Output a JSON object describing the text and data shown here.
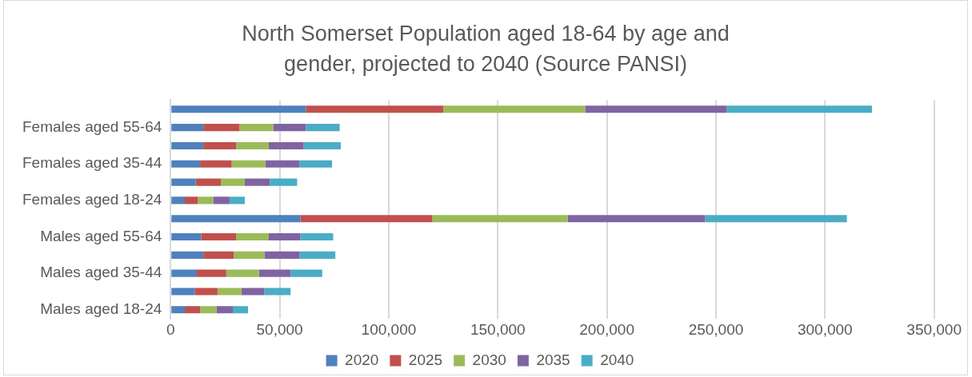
{
  "chart_data": {
    "type": "bar",
    "orientation": "horizontal",
    "stacked": true,
    "title": "North Somerset Population aged 18-64 by age and gender, projected to 2040 (Source PANSI)",
    "categories": [
      null,
      "Females aged 55-64",
      null,
      "Females aged 35-44",
      null,
      "Females aged 18-24",
      null,
      "Males aged 55-64",
      null,
      "Males aged 35-44",
      null,
      "Males aged 18-24"
    ],
    "series": [
      {
        "name": "2020",
        "color": "#4f81bd",
        "values": [
          62000,
          15000,
          15000,
          13500,
          11500,
          6500,
          59500,
          14000,
          15000,
          12000,
          11000,
          6500
        ]
      },
      {
        "name": "2025",
        "color": "#c0504d",
        "values": [
          63000,
          16500,
          15000,
          14500,
          11500,
          6000,
          60500,
          16000,
          14000,
          13500,
          10500,
          7000
        ]
      },
      {
        "name": "2030",
        "color": "#9bbb59",
        "values": [
          65000,
          15500,
          15000,
          15500,
          11000,
          7000,
          62000,
          15000,
          14000,
          15000,
          11000,
          7500
        ]
      },
      {
        "name": "2035",
        "color": "#8064a2",
        "values": [
          65000,
          15000,
          16000,
          15500,
          11500,
          7500,
          63000,
          14500,
          16000,
          14500,
          10500,
          7500
        ]
      },
      {
        "name": "2040",
        "color": "#4bacc6",
        "values": [
          66500,
          15500,
          17000,
          15000,
          12500,
          7000,
          65000,
          15000,
          16500,
          14500,
          12000,
          7000
        ]
      }
    ],
    "xlim": [
      0,
      350000
    ],
    "xticks": [
      0,
      {
        "value": 50000,
        "label": "50,000"
      },
      {
        "value": 100000,
        "label": "100,000"
      },
      {
        "value": 150000,
        "label": "150,000"
      },
      {
        "value": 200000,
        "label": "200,000"
      },
      {
        "value": 250000,
        "label": "250,000"
      },
      {
        "value": 300000,
        "label": "300,000"
      },
      {
        "value": 350000,
        "label": "350,000"
      }
    ],
    "grid": "x",
    "legend": "bottom"
  }
}
